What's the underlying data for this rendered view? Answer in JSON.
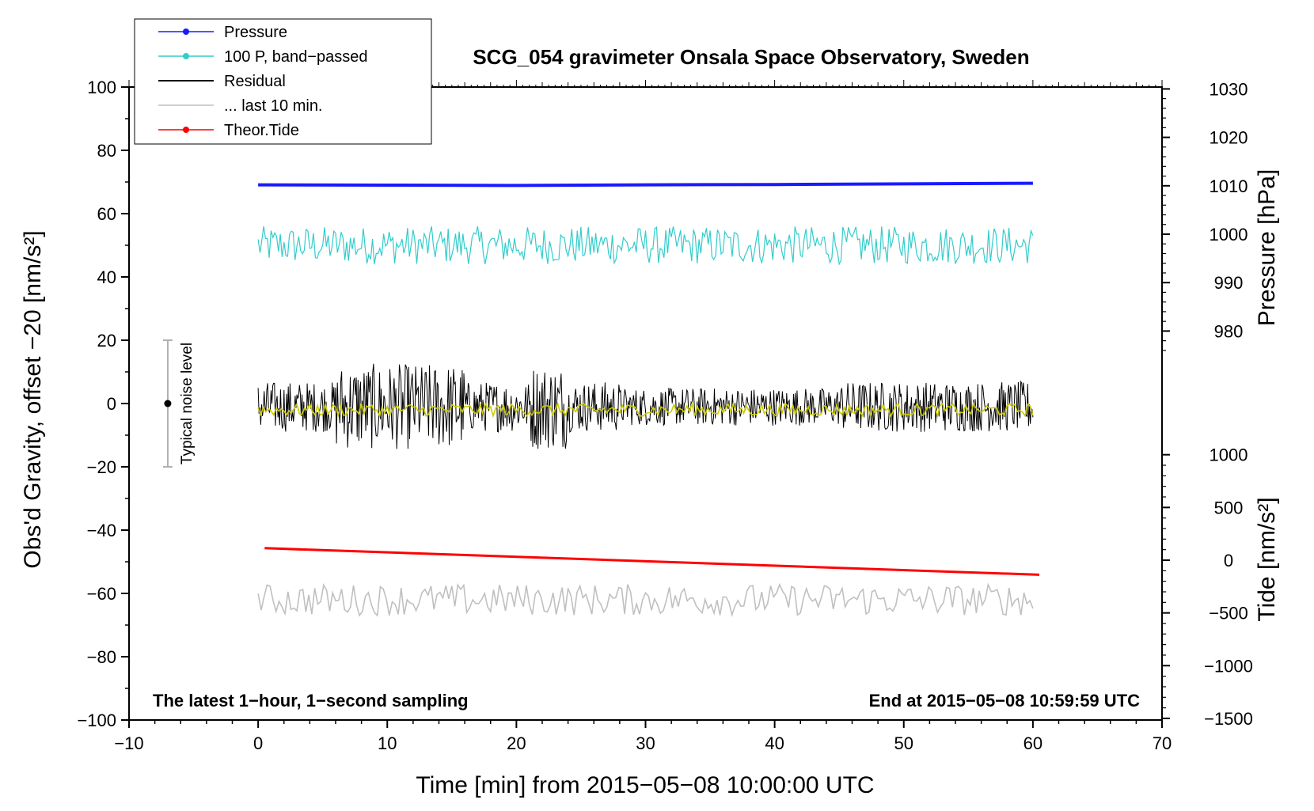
{
  "chart_data": {
    "type": "line",
    "title": "SCG_054 gravimeter Onsala Space Observatory, Sweden",
    "xlabel": "Time [min] from 2015−05−08 10:00:00 UTC",
    "ylabel_left": "Obs'd Gravity, offset −20 [nm/s²]",
    "ylabel_pressure": "Pressure [hPa]",
    "ylabel_tide": "Tide [nm/s²]",
    "xlim": [
      -10,
      70
    ],
    "ylim": [
      -100,
      100
    ],
    "x_ticks": [
      -10,
      0,
      10,
      20,
      30,
      40,
      50,
      60,
      70
    ],
    "x_tick_labels": [
      "−10",
      "0",
      "10",
      "20",
      "30",
      "40",
      "50",
      "60",
      "70"
    ],
    "y_ticks": [
      -100,
      -80,
      -60,
      -40,
      -20,
      0,
      20,
      40,
      60,
      80,
      100
    ],
    "y_tick_labels": [
      "−100",
      "−80",
      "−60",
      "−40",
      "−20",
      "0",
      "20",
      "40",
      "60",
      "80",
      "100"
    ],
    "pressure_ticks": [
      980,
      990,
      1000,
      1010,
      1020,
      1030
    ],
    "pressure_tick_labels": [
      "980",
      "990",
      "1000",
      "1010",
      "1020",
      "1030"
    ],
    "tide_ticks": [
      -1500,
      -1000,
      -500,
      0,
      500,
      1000
    ],
    "tide_tick_labels": [
      "−1500",
      "−1000",
      "−500",
      "0",
      "500",
      "1000"
    ],
    "legend_position": "top-left",
    "legend": [
      {
        "label": "Pressure",
        "color": "#1a1aff",
        "marker": "dot"
      },
      {
        "label": "100 P, band−passed",
        "color": "#33cccc",
        "marker": "dot"
      },
      {
        "label": "Residual",
        "color": "#000000",
        "marker": "none"
      },
      {
        "label": "... last 10 min.",
        "color": "#c0c0c0",
        "marker": "none"
      },
      {
        "label": "Theor.Tide",
        "color": "#ff0000",
        "marker": "dot"
      }
    ],
    "noise_bar": {
      "label": "Typical noise level",
      "x": -7,
      "center": 0,
      "range": [
        -20,
        20
      ]
    },
    "annotation_left": "The latest 1−hour, 1−second sampling",
    "annotation_right": "End at 2015−05−08 10:59:59 UTC",
    "series": [
      {
        "name": "Pressure",
        "color": "#1a1aff",
        "x": [
          0,
          10,
          20,
          30,
          40,
          50,
          60
        ],
        "values": [
          69.1,
          69.0,
          68.9,
          69.1,
          69.2,
          69.4,
          69.6
        ]
      },
      {
        "name": "100 P, band−passed",
        "color": "#33cccc",
        "x": [
          0,
          60
        ],
        "center": 50,
        "amplitude": 6
      },
      {
        "name": "Residual",
        "color": "#000000",
        "x": [
          0,
          60
        ],
        "center": -1,
        "amplitude": 8
      },
      {
        "name": "... last 10 min.",
        "color": "#c0c0c0",
        "x": [
          0,
          60
        ],
        "center": -62,
        "amplitude": 5
      },
      {
        "name": "Theor.Tide",
        "color": "#ff0000",
        "x": [
          0.5,
          60.5
        ],
        "values": [
          -45.7,
          -54.1
        ]
      },
      {
        "name": "Residual smoothed",
        "color": "#cccc00",
        "x": [
          0,
          60
        ],
        "center": -2,
        "amplitude": 2
      }
    ]
  }
}
